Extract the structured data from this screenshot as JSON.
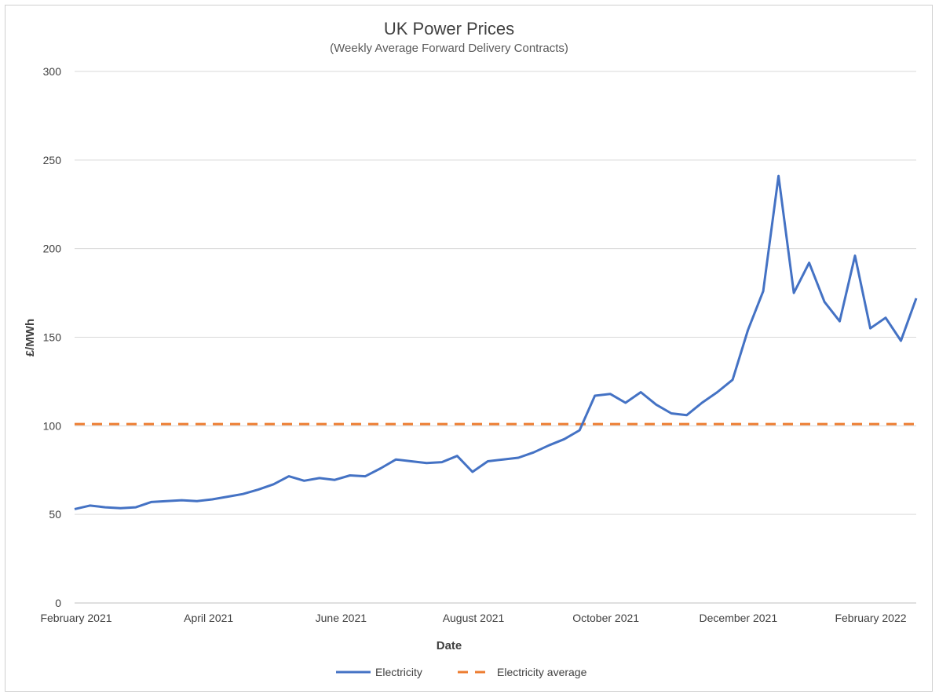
{
  "chart_data": {
    "type": "line",
    "title": "UK Power Prices",
    "subtitle": "(Weekly Average Forward Delivery Contracts)",
    "xlabel": "Date",
    "ylabel": "£/MWh",
    "ylim": [
      0,
      300
    ],
    "yticks": [
      0,
      50,
      100,
      150,
      200,
      250,
      300
    ],
    "xticks": [
      "February 2021",
      "April 2021",
      "June 2021",
      "August 2021",
      "October 2021",
      "December 2021",
      "February 2022"
    ],
    "grid": true,
    "legend_position": "bottom",
    "series": [
      {
        "name": "Electricity",
        "color": "#4472C4",
        "style": "solid",
        "values": [
          53,
          55,
          54,
          53.5,
          54,
          57,
          57.5,
          58,
          57.5,
          58.5,
          60,
          61.5,
          64,
          67,
          71.5,
          69,
          70.5,
          69.5,
          72,
          71.5,
          76,
          81,
          80,
          79,
          79.5,
          83,
          74,
          80,
          81,
          82,
          85,
          89,
          92.5,
          97.5,
          117,
          118,
          113,
          119,
          112,
          107,
          106,
          113,
          119,
          126,
          154,
          176,
          241,
          175,
          192,
          170,
          159,
          196,
          155,
          161,
          148,
          172
        ]
      },
      {
        "name": "Electricity average",
        "color": "#ED7D31",
        "style": "dashed",
        "values": [
          101
        ]
      }
    ]
  }
}
